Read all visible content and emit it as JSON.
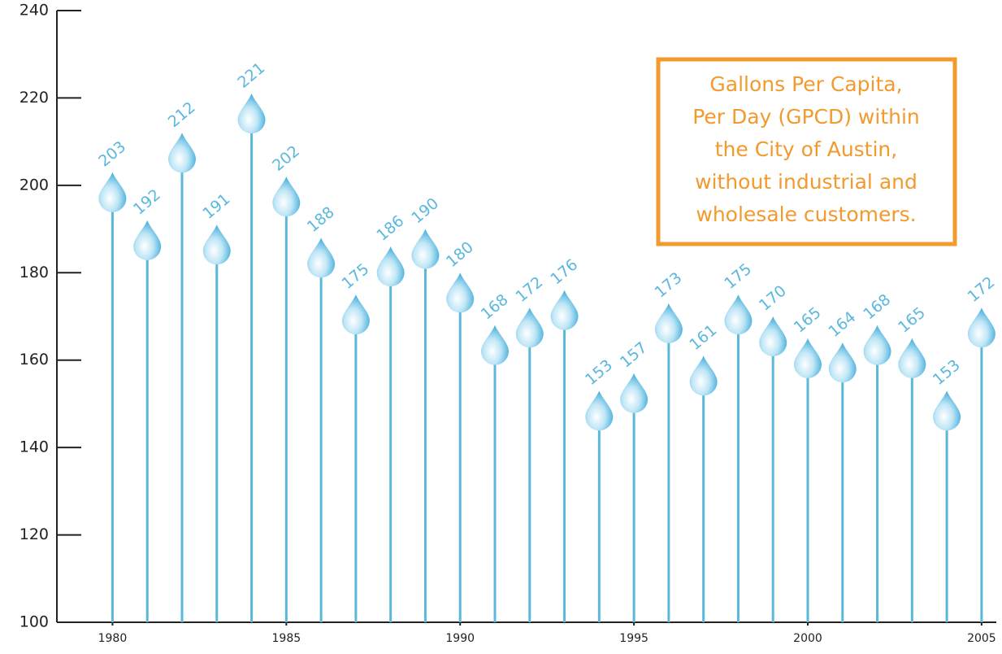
{
  "chart_data": {
    "type": "lollipop",
    "annotation": [
      "Gallons Per Capita,",
      "Per Day (GPCD) within",
      "the City of Austin,",
      "without industrial and",
      "wholesale customers."
    ],
    "x": [
      1980,
      1981,
      1982,
      1983,
      1984,
      1985,
      1986,
      1987,
      1988,
      1989,
      1990,
      1991,
      1992,
      1993,
      1994,
      1995,
      1996,
      1997,
      1998,
      1999,
      2000,
      2001,
      2002,
      2003,
      2004,
      2005
    ],
    "values": [
      203,
      192,
      212,
      191,
      221,
      202,
      188,
      175,
      186,
      190,
      180,
      168,
      172,
      176,
      153,
      157,
      173,
      161,
      175,
      170,
      165,
      164,
      168,
      165,
      153,
      172
    ],
    "color": "#5bb8dd",
    "xlim": [
      1978.4,
      2005.4
    ],
    "xticks": [
      1980,
      1985,
      1990,
      1995,
      2000,
      2005
    ],
    "ylim": [
      100,
      240
    ],
    "yticks": [
      100,
      120,
      140,
      160,
      180,
      200,
      220,
      240
    ]
  }
}
